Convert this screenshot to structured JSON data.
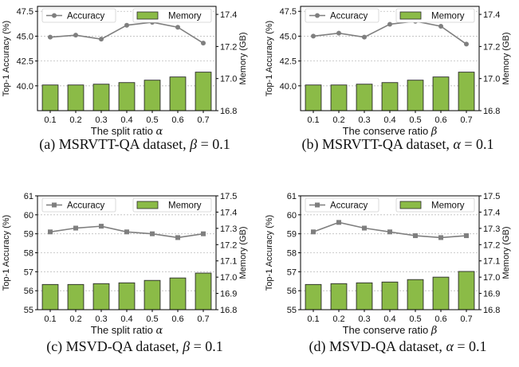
{
  "colors": {
    "bar_fill": "#8bbb47",
    "bar_stroke": "#2a2a2a",
    "line": "#7f7f7f",
    "grid": "#bdbdbd",
    "text": "#111111"
  },
  "chart_data": [
    {
      "type": "bar",
      "panel": "a",
      "caption_prefix": "(a) MSRVTT-QA dataset,",
      "caption_var": "β",
      "caption_value": "= 0.1",
      "xlabel_text": "The split ratio",
      "xlabel_var": "α",
      "ylabel_left": "Top-1 Accuracy (%)",
      "ylabel_right": "Memory (GB)",
      "categories": [
        "0.1",
        "0.2",
        "0.3",
        "0.4",
        "0.5",
        "0.6",
        "0.7"
      ],
      "series": [
        {
          "name": "Accuracy",
          "type": "line",
          "axis": "left",
          "marker": "circle",
          "values": [
            44.9,
            45.1,
            44.7,
            46.1,
            46.4,
            45.9,
            44.3
          ]
        },
        {
          "name": "Memory",
          "type": "bar",
          "axis": "right",
          "values": [
            16.96,
            16.96,
            16.965,
            16.975,
            16.99,
            17.01,
            17.04
          ]
        }
      ],
      "ylim_left": [
        37.5,
        48.0
      ],
      "yticks_left": [
        "40.0",
        "42.5",
        "45.0",
        "47.5"
      ],
      "ylim_right": [
        16.8,
        17.45
      ],
      "yticks_right": [
        "16.8",
        "17.0",
        "17.2",
        "17.4"
      ],
      "grid": true,
      "legend": [
        "top-left",
        "top-right"
      ]
    },
    {
      "type": "bar",
      "panel": "b",
      "caption_prefix": "(b) MSRVTT-QA dataset,",
      "caption_var": "α",
      "caption_value": "= 0.1",
      "xlabel_text": "The conserve ratio",
      "xlabel_var": "β",
      "ylabel_left": "Top-1 Accuracy (%)",
      "ylabel_right": "Memory (GB)",
      "categories": [
        "0.1",
        "0.2",
        "0.3",
        "0.4",
        "0.5",
        "0.6",
        "0.7"
      ],
      "series": [
        {
          "name": "Accuracy",
          "type": "line",
          "axis": "left",
          "marker": "circle",
          "values": [
            45.0,
            45.3,
            44.9,
            46.2,
            46.5,
            46.0,
            44.2
          ]
        },
        {
          "name": "Memory",
          "type": "bar",
          "axis": "right",
          "values": [
            16.96,
            16.96,
            16.965,
            16.975,
            16.99,
            17.01,
            17.04
          ]
        }
      ],
      "ylim_left": [
        37.5,
        48.0
      ],
      "yticks_left": [
        "40.0",
        "42.5",
        "45.0",
        "47.5"
      ],
      "ylim_right": [
        16.8,
        17.45
      ],
      "yticks_right": [
        "16.8",
        "17.0",
        "17.2",
        "17.4"
      ],
      "grid": true,
      "legend": [
        "top-left",
        "top-right"
      ]
    },
    {
      "type": "bar",
      "panel": "c",
      "caption_prefix": "(c) MSVD-QA dataset,",
      "caption_var": "β",
      "caption_value": "= 0.1",
      "xlabel_text": "The split ratio",
      "xlabel_var": "α",
      "ylabel_left": "Top-1 Accuracy (%)",
      "ylabel_right": "Memory (GB)",
      "categories": [
        "0.1",
        "0.2",
        "0.3",
        "0.4",
        "0.5",
        "0.6",
        "0.7"
      ],
      "series": [
        {
          "name": "Accuracy",
          "type": "line",
          "axis": "left",
          "marker": "square",
          "values": [
            59.1,
            59.3,
            59.4,
            59.1,
            59.0,
            58.8,
            59.0
          ]
        },
        {
          "name": "Memory",
          "type": "bar",
          "axis": "right",
          "values": [
            16.955,
            16.955,
            16.96,
            16.965,
            16.98,
            16.995,
            17.025
          ]
        }
      ],
      "ylim_left": [
        55,
        61
      ],
      "yticks_left": [
        "55",
        "56",
        "57",
        "58",
        "59",
        "60",
        "61"
      ],
      "ylim_right": [
        16.8,
        17.5
      ],
      "yticks_right": [
        "16.8",
        "16.9",
        "17.0",
        "17.1",
        "17.2",
        "17.3",
        "17.4",
        "17.5"
      ],
      "grid": true,
      "legend": [
        "top-left",
        "top-right"
      ]
    },
    {
      "type": "bar",
      "panel": "d",
      "caption_prefix": "(d) MSVD-QA dataset,",
      "caption_var": "α",
      "caption_value": "= 0.1",
      "xlabel_text": "The conserve ratio",
      "xlabel_var": "β",
      "ylabel_left": "Top-1 Accuracy (%)",
      "ylabel_right": "Memory (GB)",
      "categories": [
        "0.1",
        "0.2",
        "0.3",
        "0.4",
        "0.5",
        "0.6",
        "0.7"
      ],
      "series": [
        {
          "name": "Accuracy",
          "type": "line",
          "axis": "left",
          "marker": "square",
          "values": [
            59.1,
            59.6,
            59.3,
            59.1,
            58.9,
            58.8,
            58.9
          ]
        },
        {
          "name": "Memory",
          "type": "bar",
          "axis": "right",
          "values": [
            16.955,
            16.96,
            16.965,
            16.97,
            16.985,
            17.0,
            17.035
          ]
        }
      ],
      "ylim_left": [
        55,
        61
      ],
      "yticks_left": [
        "55",
        "56",
        "57",
        "58",
        "59",
        "60",
        "61"
      ],
      "ylim_right": [
        16.8,
        17.5
      ],
      "yticks_right": [
        "16.8",
        "16.9",
        "17.0",
        "17.1",
        "17.2",
        "17.3",
        "17.4",
        "17.5"
      ],
      "grid": true,
      "legend": [
        "top-left",
        "top-right"
      ]
    }
  ]
}
